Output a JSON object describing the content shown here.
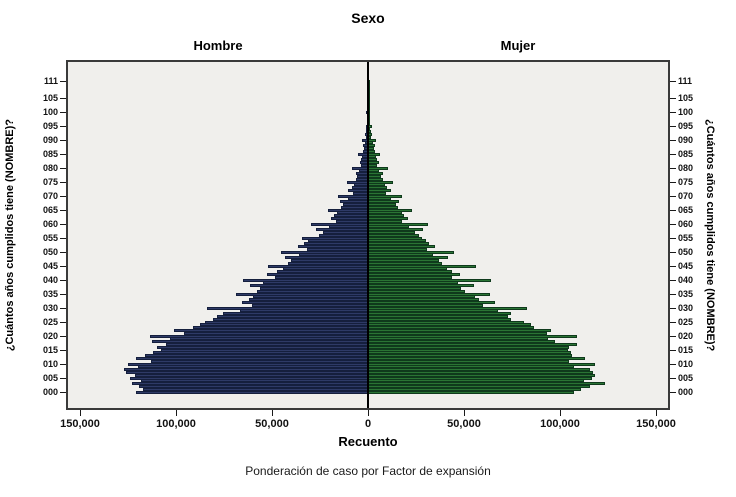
{
  "title": "Sexo",
  "panels": {
    "left_label": "Hombre",
    "right_label": "Mujer"
  },
  "x_axis": {
    "title": "Recuento",
    "tick_labels": [
      "150,000",
      "100,000",
      "50,000",
      "0",
      "50,000",
      "100,000",
      "150,000"
    ],
    "tick_values": [
      -150000,
      -100000,
      -50000,
      0,
      50000,
      100000,
      150000
    ],
    "max_each_side": 156250
  },
  "y_axis": {
    "title_left": "¿Cuántos años cumplidos tiene (NOMBRE)?",
    "title_right": "¿Cuántos años cumplidos tiene (NOMBRE)?",
    "tick_labels": [
      "000",
      "005",
      "010",
      "015",
      "020",
      "025",
      "030",
      "035",
      "040",
      "045",
      "050",
      "055",
      "060",
      "065",
      "070",
      "075",
      "080",
      "085",
      "090",
      "095",
      "100",
      "105",
      "111"
    ]
  },
  "footnote": "Ponderación de caso por Factor de expansión",
  "colors": {
    "male_fill": "#2e3a66",
    "male_border": "#151f3d",
    "female_fill": "#2a7434",
    "female_border": "#0f3a1c",
    "plot_background": "#f0efec",
    "frame": "#3a3a3a",
    "center_line": "#000000"
  },
  "chart_data": {
    "type": "bar",
    "subtype": "population-pyramid",
    "title": "Sexo",
    "xlabel": "Recuento",
    "ylabel": "¿Cuántos años cumplidos tiene (NOMBRE)?",
    "footnote": "Ponderación de caso por Factor de expansión",
    "age_min": 0,
    "age_max": 111,
    "x_range_each_side": [
      0,
      156250
    ],
    "grid": false,
    "series": [
      {
        "name": "Hombre",
        "side": "left",
        "values": [
          121000,
          117000,
          119500,
          123000,
          118000,
          124000,
          121500,
          126000,
          127000,
          120000,
          125000,
          113000,
          121000,
          116000,
          112000,
          108000,
          110000,
          105000,
          112500,
          103000,
          113500,
          96000,
          101000,
          91000,
          87500,
          85000,
          80500,
          78500,
          75500,
          66500,
          84000,
          60500,
          65500,
          62000,
          60000,
          68500,
          58000,
          56500,
          61500,
          54500,
          65000,
          48500,
          52500,
          47500,
          44500,
          52000,
          41500,
          40000,
          43000,
          36000,
          45500,
          32000,
          36500,
          33500,
          31000,
          34500,
          25500,
          23500,
          27000,
          20500,
          29500,
          16500,
          19500,
          17500,
          16000,
          21000,
          14000,
          13000,
          14500,
          10500,
          15500,
          8000,
          10500,
          8500,
          7500,
          11000,
          6500,
          5500,
          6500,
          4500,
          8500,
          3800,
          4300,
          3600,
          3100,
          5000,
          2600,
          2300,
          2500,
          1700,
          3200,
          1100,
          1400,
          1000,
          900,
          1300,
          700,
          600,
          700,
          500,
          900,
          350,
          400,
          300,
          250,
          400,
          200,
          150,
          150,
          100,
          150,
          250
        ]
      },
      {
        "name": "Mujer",
        "side": "right",
        "values": [
          107500,
          111000,
          115500,
          123500,
          112500,
          116500,
          118000,
          117000,
          115500,
          107500,
          118000,
          104500,
          113000,
          106000,
          105500,
          104000,
          104500,
          109000,
          97500,
          93500,
          109000,
          93000,
          95500,
          86500,
          85000,
          81000,
          74500,
          73000,
          74500,
          67500,
          83000,
          60000,
          66000,
          58000,
          55500,
          63500,
          50500,
          48500,
          55000,
          47000,
          64000,
          44000,
          48000,
          43500,
          41000,
          56000,
          38500,
          37000,
          41500,
          34000,
          45000,
          30500,
          35000,
          32000,
          30000,
          28000,
          26500,
          24500,
          28500,
          21500,
          31500,
          17500,
          21000,
          19000,
          17500,
          23000,
          15500,
          14500,
          16000,
          12000,
          17500,
          9500,
          12000,
          10000,
          9000,
          13000,
          7800,
          6800,
          8000,
          5700,
          10500,
          4900,
          5500,
          4700,
          4100,
          6500,
          3500,
          3100,
          3400,
          2400,
          4300,
          1600,
          2000,
          1500,
          1300,
          1900,
          1000,
          900,
          1000,
          750,
          1300,
          500,
          600,
          450,
          380,
          600,
          300,
          220,
          220,
          150,
          220,
          380
        ]
      }
    ]
  }
}
